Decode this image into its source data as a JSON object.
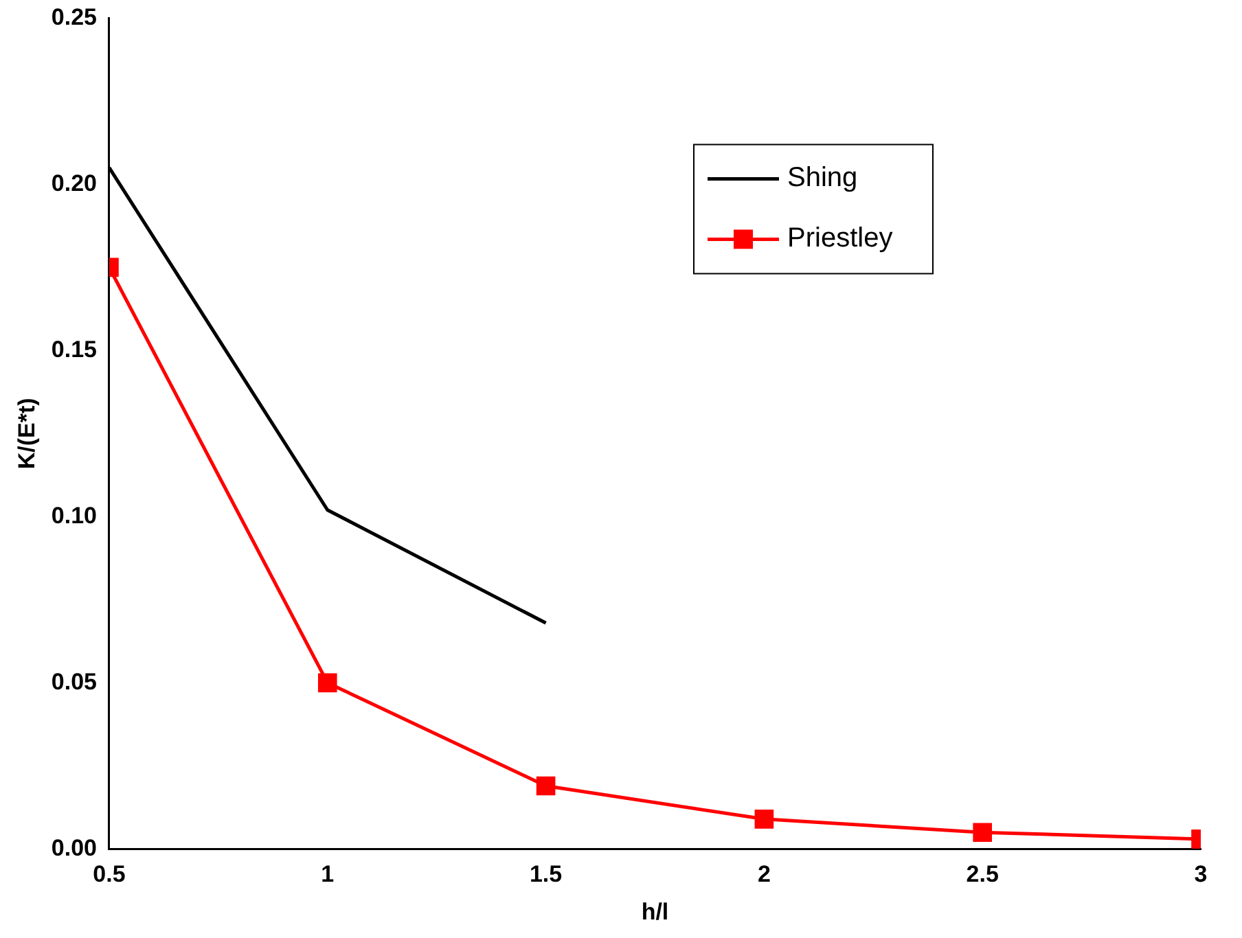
{
  "chart_data": {
    "type": "line",
    "xlabel": "h/l",
    "ylabel": "K/(E*t)",
    "xlim": [
      0.5,
      3
    ],
    "xticks": [
      0.5,
      1,
      1.5,
      2,
      2.5,
      3
    ],
    "ylim": [
      0,
      0.25
    ],
    "yticks": [
      {
        "value": 0,
        "label": "0.00"
      },
      {
        "value": 0.05,
        "label": "0.05"
      },
      {
        "value": 0.1,
        "label": "0.10"
      },
      {
        "value": 0.15,
        "label": "0.15"
      },
      {
        "value": 0.2,
        "label": "0.20"
      },
      {
        "value": 0.25,
        "label": "0.25"
      }
    ],
    "grid": false,
    "legend": "top right",
    "line_style": "solid",
    "series": [
      {
        "name": "Shing",
        "color": "#000000",
        "marker": "none",
        "x": [
          0.5,
          1,
          1.5
        ],
        "values": [
          0.205,
          0.102,
          0.068
        ]
      },
      {
        "name": "Priestley",
        "color": "#ff0000",
        "marker": "square",
        "x": [
          0.5,
          1,
          1.5,
          2,
          2.5,
          3
        ],
        "values": [
          0.175,
          0.05,
          0.019,
          0.009,
          0.005,
          0.003
        ]
      }
    ]
  }
}
